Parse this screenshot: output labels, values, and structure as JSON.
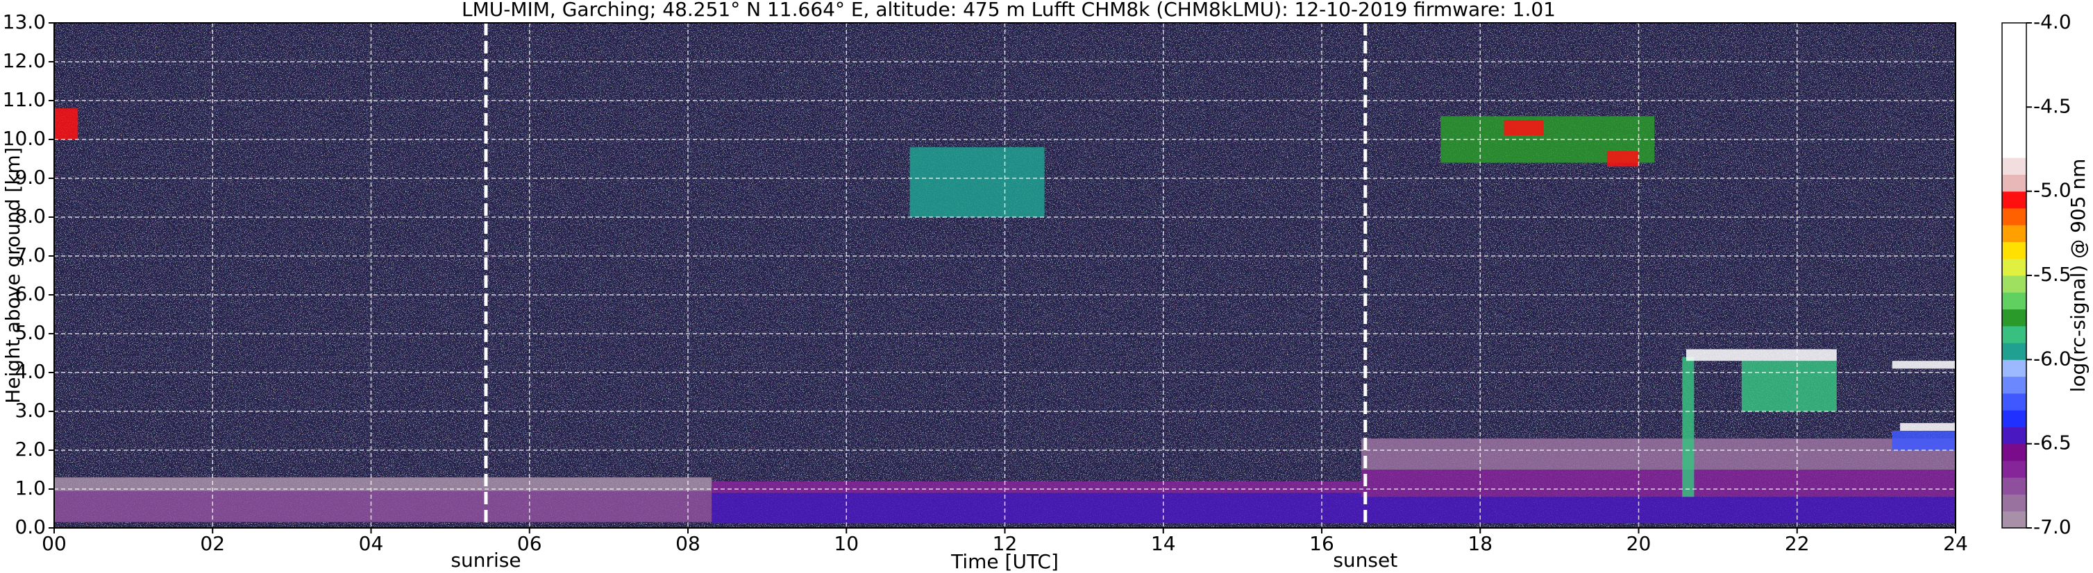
{
  "chart_data": {
    "type": "heatmap",
    "title": "LMU-MIM, Garching; 48.251° N 11.664° E, altitude: 475 m    Lufft CHM8k (CHM8kLMU): 12-10-2019    firmware: 1.01",
    "x_label": "Time [UTC]",
    "y_label": "Height above ground [km]",
    "xlim": [
      0,
      24
    ],
    "ylim": [
      0,
      13
    ],
    "xticks": [
      {
        "value": 0,
        "label": "00"
      },
      {
        "value": 2,
        "label": "02"
      },
      {
        "value": 4,
        "label": "04"
      },
      {
        "value": 6,
        "label": "06"
      },
      {
        "value": 8,
        "label": "08"
      },
      {
        "value": 10,
        "label": "10"
      },
      {
        "value": 12,
        "label": "12"
      },
      {
        "value": 14,
        "label": "14"
      },
      {
        "value": 16,
        "label": "16"
      },
      {
        "value": 18,
        "label": "18"
      },
      {
        "value": 20,
        "label": "20"
      },
      {
        "value": 22,
        "label": "22"
      },
      {
        "value": 24,
        "label": "24"
      }
    ],
    "yticks": [
      {
        "value": 0,
        "label": "0.0"
      },
      {
        "value": 1,
        "label": "1.0"
      },
      {
        "value": 2,
        "label": "2.0"
      },
      {
        "value": 3,
        "label": "3.0"
      },
      {
        "value": 4,
        "label": "4.0"
      },
      {
        "value": 5,
        "label": "5.0"
      },
      {
        "value": 6,
        "label": "6.0"
      },
      {
        "value": 7,
        "label": "7.0"
      },
      {
        "value": 8,
        "label": "8.0"
      },
      {
        "value": 9,
        "label": "9.0"
      },
      {
        "value": 10,
        "label": "10.0"
      },
      {
        "value": 11,
        "label": "11.0"
      },
      {
        "value": 12,
        "label": "12.0"
      },
      {
        "value": 13,
        "label": "13.0"
      }
    ],
    "grid": true,
    "annotations": [
      {
        "text": "sunrise",
        "x": 5.45
      },
      {
        "text": "sunset",
        "x": 16.55
      }
    ],
    "regions": [
      {
        "x": [
          0,
          8.3
        ],
        "y": [
          0.15,
          0.95
        ],
        "value": -6.75
      },
      {
        "x": [
          0,
          8.3
        ],
        "y": [
          0.95,
          1.3
        ],
        "value": -6.95
      },
      {
        "x": [
          8.3,
          16.5
        ],
        "y": [
          0.12,
          0.9
        ],
        "value": -6.45
      },
      {
        "x": [
          8.3,
          16.5
        ],
        "y": [
          0.9,
          1.2
        ],
        "value": -6.65
      },
      {
        "x": [
          16.5,
          24
        ],
        "y": [
          0.12,
          0.8
        ],
        "value": -6.45
      },
      {
        "x": [
          16.5,
          24
        ],
        "y": [
          0.8,
          1.5
        ],
        "value": -6.65
      },
      {
        "x": [
          16.5,
          24
        ],
        "y": [
          1.5,
          2.3
        ],
        "value": -6.85
      },
      {
        "x": [
          0,
          0.3
        ],
        "y": [
          10.0,
          10.8
        ],
        "value": -5.05
      },
      {
        "x": [
          10.8,
          12.5
        ],
        "y": [
          8.0,
          9.8
        ],
        "value": -5.95
      },
      {
        "x": [
          17.5,
          20.2
        ],
        "y": [
          9.4,
          10.6
        ],
        "value": -5.75
      },
      {
        "x": [
          18.3,
          18.8
        ],
        "y": [
          10.1,
          10.5
        ],
        "value": -5.05
      },
      {
        "x": [
          19.6,
          20.0
        ],
        "y": [
          9.3,
          9.7
        ],
        "value": -5.05
      },
      {
        "x": [
          20.55,
          20.7
        ],
        "y": [
          0.8,
          4.4
        ],
        "value": -5.85
      },
      {
        "x": [
          21.3,
          22.5
        ],
        "y": [
          3.0,
          4.3
        ],
        "value": -5.85
      },
      {
        "x": [
          20.6,
          22.5
        ],
        "y": [
          4.3,
          4.6
        ],
        "value": -4.25
      },
      {
        "x": [
          23.2,
          24
        ],
        "y": [
          4.1,
          4.3
        ],
        "value": -4.25
      },
      {
        "x": [
          23.2,
          24
        ],
        "y": [
          2.0,
          2.5
        ],
        "value": -6.25
      },
      {
        "x": [
          23.3,
          24
        ],
        "y": [
          2.5,
          2.7
        ],
        "value": -4.35
      }
    ],
    "colorbar": {
      "label": "log(rc-signal) @ 905 nm",
      "clim": [
        -7,
        -4
      ],
      "ticks": [
        {
          "value": -4,
          "label": "-4.0"
        },
        {
          "value": -4.5,
          "label": "-4.5"
        },
        {
          "value": -5,
          "label": "-5.0"
        },
        {
          "value": -5.5,
          "label": "-5.5"
        },
        {
          "value": -6,
          "label": "-6.0"
        },
        {
          "value": -6.5,
          "label": "-6.5"
        },
        {
          "value": -7,
          "label": "-7.0"
        }
      ],
      "colors": [
        "#a890a8",
        "#9a72a0",
        "#8e509c",
        "#86259a",
        "#7a0c8c",
        "#4a18c0",
        "#2030ff",
        "#4058ff",
        "#6c88ff",
        "#9cb8ff",
        "#20a090",
        "#38c080",
        "#2a9a2a",
        "#60d060",
        "#a0e060",
        "#e0f040",
        "#ffe000",
        "#ffa000",
        "#ff6000",
        "#ff1010",
        "#e8b8b8",
        "#f2dede",
        "#ffffff",
        "#ffffff",
        "#ffffff",
        "#ffffff",
        "#ffffff",
        "#ffffff",
        "#ffffff",
        "#ffffff"
      ]
    },
    "background_color": "#23214a"
  }
}
